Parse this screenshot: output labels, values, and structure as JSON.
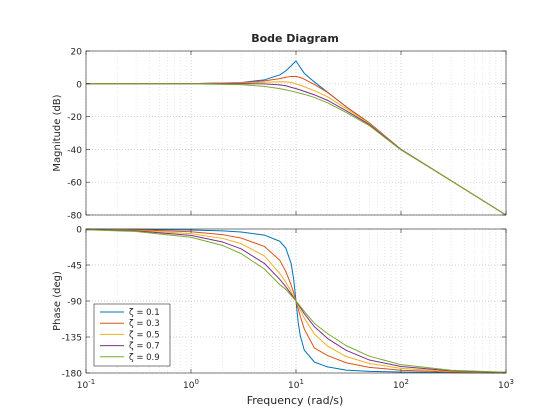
{
  "figure": {
    "title": "Bode Diagram",
    "xlabel": "Frequency  (rad/s)"
  },
  "chart_data": [
    {
      "type": "line",
      "panel": "magnitude",
      "title": "Bode Diagram",
      "ylabel": "Magnitude (dB)",
      "xlabel": "",
      "xscale": "log",
      "xlim": [
        0.1,
        1000
      ],
      "ylim": [
        -80,
        20
      ],
      "xticks": [
        0.1,
        1,
        10,
        100,
        1000
      ],
      "xtick_labels": [],
      "yticks": [
        20,
        0,
        -20,
        -40,
        -60,
        -80
      ],
      "ytick_labels": [
        "20",
        "0",
        "-20",
        "-40",
        "-60",
        "-80"
      ],
      "grid": true,
      "x": [
        0.1,
        0.3,
        1,
        3,
        5,
        7,
        8,
        9,
        10,
        11,
        12,
        15,
        20,
        30,
        50,
        100,
        300,
        1000
      ],
      "series": [
        {
          "name": "ζ = 0.1",
          "color": "#0072bd",
          "values": [
            0.0,
            0.01,
            0.09,
            0.75,
            2.42,
            5.39,
            7.89,
            11.0,
            13.98,
            9.93,
            6.38,
            1.05,
            -5.2,
            -13.92,
            -23.84,
            -39.96,
            -59.08,
            -80.0
          ]
        },
        {
          "name": "ζ = 0.3",
          "color": "#d95319",
          "values": [
            0.0,
            0.01,
            0.08,
            0.63,
            1.82,
            3.18,
            3.97,
            4.49,
            4.44,
            3.83,
            2.8,
            -0.43,
            -5.25,
            -13.98,
            -23.94,
            -39.97,
            -59.09,
            -80.0
          ]
        },
        {
          "name": "ζ = 0.5",
          "color": "#edb120",
          "values": [
            0.0,
            0.0,
            0.06,
            0.4,
            0.97,
            1.22,
            1.17,
            0.78,
            0.0,
            -0.88,
            -1.79,
            -4.18,
            -7.96,
            -15.12,
            -24.33,
            -40.04,
            -59.1,
            -80.0
          ]
        },
        {
          "name": "ζ = 0.7",
          "color": "#7e2f8e",
          "values": [
            0.0,
            0.0,
            0.0,
            0.05,
            -0.04,
            -0.63,
            -1.17,
            -2.18,
            -2.92,
            -3.79,
            -4.62,
            -6.73,
            -10.1,
            -16.37,
            -24.84,
            -40.17,
            -59.11,
            -80.0
          ]
        },
        {
          "name": "ζ = 0.9",
          "color": "#77ac30",
          "values": [
            0.0,
            -0.01,
            -0.06,
            -0.47,
            -1.57,
            -2.92,
            -3.72,
            -4.43,
            -5.11,
            -5.81,
            -6.42,
            -8.32,
            -11.58,
            -17.45,
            -25.53,
            -40.33,
            -59.12,
            -80.0
          ]
        }
      ]
    },
    {
      "type": "line",
      "panel": "phase",
      "ylabel": "Phase (deg)",
      "xlabel": "Frequency  (rad/s)",
      "xscale": "log",
      "xlim": [
        0.1,
        1000
      ],
      "ylim": [
        -180,
        0
      ],
      "xticks": [
        0.1,
        1,
        10,
        100,
        1000
      ],
      "xtick_labels": [
        "10^-1",
        "10^0",
        "10^1",
        "10^2",
        "10^3"
      ],
      "yticks": [
        0,
        -45,
        -90,
        -135,
        -180
      ],
      "ytick_labels": [
        "0",
        "-45",
        "-90",
        "-135",
        "-180"
      ],
      "grid": true,
      "legend": "bottom-left",
      "x": [
        0.1,
        0.3,
        1,
        2,
        3,
        5,
        7,
        8,
        9,
        9.5,
        10,
        10.5,
        11,
        12,
        15,
        20,
        30,
        50,
        100,
        300,
        1000
      ],
      "series": [
        {
          "name": "ζ = 0.1",
          "color": "#0072bd",
          "values": [
            -0.1,
            -0.3,
            -1.2,
            -2.4,
            -3.8,
            -7.6,
            -15.3,
            -23.9,
            -43.5,
            -62.9,
            -90,
            -117.2,
            -133.8,
            -151.5,
            -166.4,
            -172.4,
            -176.4,
            -177.9,
            -178.8,
            -179.6,
            -180.0
          ]
        },
        {
          "name": "ζ = 0.3",
          "color": "#d95319",
          "values": [
            -0.3,
            -1.0,
            -3.5,
            -7.1,
            -11.3,
            -21.8,
            -39.0,
            -53.1,
            -70.3,
            -79.8,
            -90,
            -99.8,
            -109.4,
            -125.1,
            -148.9,
            -158.2,
            -167.2,
            -173.0,
            -176.5,
            -178.8,
            -179.7
          ]
        },
        {
          "name": "ζ = 0.5",
          "color": "#edb120",
          "values": [
            -0.6,
            -1.7,
            -5.8,
            -11.8,
            -18.3,
            -33.7,
            -55.5,
            -66.6,
            -78.4,
            -84.5,
            -90,
            -95.4,
            -101.5,
            -111.5,
            -131.5,
            -146.3,
            -159.4,
            -168.1,
            -174.2,
            -178.1,
            -179.4
          ]
        },
        {
          "name": "ζ = 0.7",
          "color": "#7e2f8e",
          "values": [
            -0.8,
            -2.4,
            -8.0,
            -16.3,
            -24.8,
            -43.0,
            -62.9,
            -72.1,
            -81.5,
            -85.9,
            -90,
            -94.0,
            -98.1,
            -105.9,
            -122.2,
            -136.9,
            -151.6,
            -163.8,
            -171.9,
            -177.3,
            -179.2
          ]
        },
        {
          "name": "ζ = 0.9",
          "color": "#77ac30",
          "values": [
            -1.0,
            -3.1,
            -10.3,
            -20.6,
            -30.8,
            -50.0,
            -69.5,
            -75.4,
            -83.2,
            -86.6,
            -90,
            -93.3,
            -96.7,
            -103.0,
            -118.1,
            -130.8,
            -145.8,
            -159.0,
            -169.6,
            -176.6,
            -179.0
          ]
        }
      ]
    }
  ]
}
